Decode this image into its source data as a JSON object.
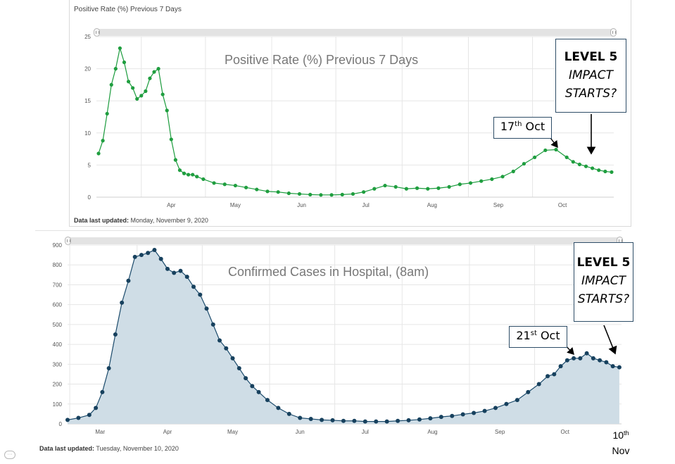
{
  "panel1": {
    "corner_title": "Positive Rate (%) Previous 7 Days",
    "updated_label": "Data last updated:",
    "updated_value": " Monday, November 9, 2020"
  },
  "panel2": {
    "updated_label": "Data last updated:",
    "updated_value": " Tuesday, November 10, 2020"
  },
  "annotations": {
    "chart1": {
      "level": "LEVEL 5",
      "line2": "IMPACT",
      "line3": "STARTS?",
      "date_num": "17",
      "date_sup": "th",
      "date_rest": " Oct"
    },
    "chart2": {
      "level": "LEVEL 5",
      "line2": "IMPACT",
      "line3": "STARTS?",
      "date_num": "21",
      "date_sup": "st",
      "date_rest": " Oct"
    },
    "end_num": "10",
    "end_sup": "th",
    "end_word": "Nov"
  },
  "colors": {
    "chart1_line": "#1a9b3c",
    "chart1_marker": "#1f9e3f",
    "chart2_line": "#1b4a6b",
    "chart2_marker": "#17415e",
    "chart2_fill": "#cfdde6",
    "grid": "#e6e6e6"
  },
  "chart_data": [
    {
      "type": "line",
      "title": "Positive Rate (%) Previous 7 Days",
      "xlabel": "",
      "ylabel": "",
      "x_ticks": [
        "Apr",
        "May",
        "Jun",
        "Jul",
        "Aug",
        "Sep",
        "Oct"
      ],
      "y_ticks": [
        0,
        5,
        10,
        15,
        20,
        25
      ],
      "ylim": [
        0,
        25
      ],
      "xlim": [
        "2020-03-11",
        "2020-11-08"
      ],
      "grid": true,
      "series": [
        {
          "x": [
            "2020-03-12",
            "2020-03-14",
            "2020-03-16",
            "2020-03-18",
            "2020-03-20",
            "2020-03-22",
            "2020-03-24",
            "2020-03-26",
            "2020-03-28",
            "2020-03-30",
            "2020-04-01",
            "2020-04-03",
            "2020-04-05",
            "2020-04-07",
            "2020-04-09",
            "2020-04-11",
            "2020-04-13",
            "2020-04-15",
            "2020-04-17",
            "2020-04-19",
            "2020-04-21",
            "2020-04-23",
            "2020-04-25",
            "2020-04-27",
            "2020-04-30",
            "2020-05-05",
            "2020-05-10",
            "2020-05-15",
            "2020-05-20",
            "2020-05-25",
            "2020-05-30",
            "2020-06-04",
            "2020-06-09",
            "2020-06-14",
            "2020-06-19",
            "2020-06-24",
            "2020-06-29",
            "2020-07-04",
            "2020-07-09",
            "2020-07-14",
            "2020-07-19",
            "2020-07-24",
            "2020-07-29",
            "2020-08-03",
            "2020-08-08",
            "2020-08-13",
            "2020-08-18",
            "2020-08-23",
            "2020-08-28",
            "2020-09-02",
            "2020-09-07",
            "2020-09-12",
            "2020-09-17",
            "2020-09-22",
            "2020-09-27",
            "2020-10-02",
            "2020-10-07",
            "2020-10-12",
            "2020-10-17",
            "2020-10-20",
            "2020-10-23",
            "2020-10-26",
            "2020-10-29",
            "2020-11-01",
            "2020-11-04",
            "2020-11-07"
          ],
          "y": [
            6.8,
            8.8,
            13.0,
            17.5,
            20.0,
            23.2,
            21.0,
            18.0,
            17.0,
            15.3,
            15.8,
            16.5,
            18.5,
            19.5,
            20.0,
            16.0,
            13.5,
            9.0,
            5.8,
            4.2,
            3.7,
            3.5,
            3.5,
            3.2,
            2.8,
            2.2,
            2.0,
            1.8,
            1.5,
            1.2,
            0.9,
            0.8,
            0.6,
            0.5,
            0.4,
            0.35,
            0.35,
            0.4,
            0.5,
            0.8,
            1.3,
            1.8,
            1.6,
            1.3,
            1.4,
            1.3,
            1.4,
            1.6,
            2.0,
            2.2,
            2.5,
            2.8,
            3.2,
            4.0,
            5.2,
            6.2,
            7.3,
            7.4,
            6.2,
            5.5,
            5.1,
            4.8,
            4.5,
            4.2,
            4.0,
            3.9
          ]
        }
      ]
    },
    {
      "type": "area",
      "title": "Confirmed Cases in Hospital, (8am)",
      "xlabel": "",
      "ylabel": "",
      "x_ticks": [
        "Mar",
        "Apr",
        "May",
        "Jun",
        "Jul",
        "Aug",
        "Sep",
        "Oct"
      ],
      "y_ticks": [
        0,
        100,
        200,
        300,
        400,
        500,
        600,
        700,
        800,
        900
      ],
      "ylim": [
        0,
        900
      ],
      "xlim": [
        "2020-02-29",
        "2020-11-10"
      ],
      "grid": true,
      "series": [
        {
          "x": [
            "2020-02-29",
            "2020-03-05",
            "2020-03-10",
            "2020-03-13",
            "2020-03-16",
            "2020-03-19",
            "2020-03-22",
            "2020-03-25",
            "2020-03-28",
            "2020-03-31",
            "2020-04-03",
            "2020-04-06",
            "2020-04-09",
            "2020-04-12",
            "2020-04-15",
            "2020-04-18",
            "2020-04-21",
            "2020-04-24",
            "2020-04-27",
            "2020-04-30",
            "2020-05-03",
            "2020-05-06",
            "2020-05-09",
            "2020-05-12",
            "2020-05-15",
            "2020-05-18",
            "2020-05-21",
            "2020-05-24",
            "2020-05-27",
            "2020-05-31",
            "2020-06-05",
            "2020-06-10",
            "2020-06-15",
            "2020-06-20",
            "2020-06-25",
            "2020-06-30",
            "2020-07-05",
            "2020-07-10",
            "2020-07-15",
            "2020-07-20",
            "2020-07-25",
            "2020-07-30",
            "2020-08-04",
            "2020-08-09",
            "2020-08-14",
            "2020-08-19",
            "2020-08-24",
            "2020-08-29",
            "2020-09-03",
            "2020-09-08",
            "2020-09-13",
            "2020-09-18",
            "2020-09-23",
            "2020-09-28",
            "2020-10-03",
            "2020-10-07",
            "2020-10-10",
            "2020-10-13",
            "2020-10-16",
            "2020-10-19",
            "2020-10-22",
            "2020-10-25",
            "2020-10-28",
            "2020-10-31",
            "2020-11-03",
            "2020-11-06",
            "2020-11-09"
          ],
          "y": [
            20,
            30,
            45,
            80,
            160,
            280,
            450,
            610,
            720,
            840,
            850,
            860,
            875,
            830,
            780,
            760,
            770,
            740,
            690,
            650,
            580,
            500,
            420,
            380,
            330,
            280,
            230,
            190,
            160,
            120,
            80,
            50,
            30,
            25,
            20,
            18,
            15,
            15,
            12,
            12,
            12,
            15,
            18,
            22,
            28,
            35,
            40,
            48,
            55,
            65,
            80,
            100,
            120,
            160,
            200,
            240,
            250,
            290,
            320,
            330,
            330,
            355,
            330,
            320,
            310,
            290,
            285
          ]
        }
      ]
    }
  ]
}
